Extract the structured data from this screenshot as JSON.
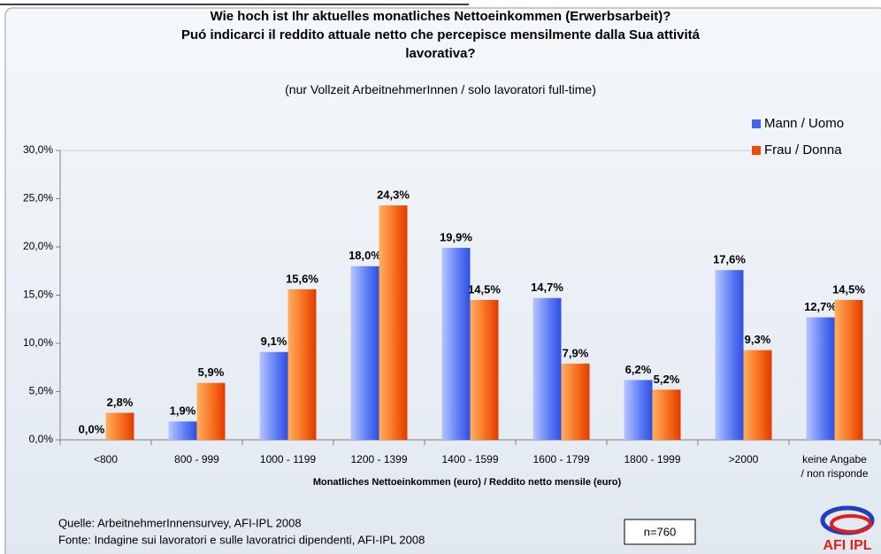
{
  "chart_data": {
    "type": "bar",
    "title": "Wie hoch ist Ihr aktuelles monatliches Nettoeinkommen (Erwerbsarbeit)?\nPuó indicarci il reddito attuale netto che percepisce mensilmente dalla Sua attivitá\nlavorativa?",
    "subtitle": "(nur Vollzeit ArbeitnehmerInnen / solo lavoratori full-time)",
    "x_label": "Monatliches Nettoeinkommen (euro) / Reddito netto mensile (euro)",
    "categories": [
      "<800",
      "800 - 999",
      "1000 - 1199",
      "1200 - 1399",
      "1400 - 1599",
      "1600 - 1799",
      "1800 - 1999",
      ">2000",
      "keine Angabe\n/ non risponde"
    ],
    "series": [
      {
        "name": "Mann / Uomo",
        "color": "#3f63ee",
        "values": [
          0.0,
          1.9,
          9.1,
          18.0,
          19.9,
          14.7,
          6.2,
          17.6,
          12.7
        ],
        "value_labels": [
          "0,0%",
          "1,9%",
          "9,1%",
          "18,0%",
          "19,9%",
          "14,7%",
          "6,2%",
          "17,6%",
          "12,7%"
        ]
      },
      {
        "name": "Frau / Donna",
        "color": "#f04a0a",
        "values": [
          2.8,
          5.9,
          15.6,
          24.3,
          14.5,
          7.9,
          5.2,
          9.3,
          14.5
        ],
        "value_labels": [
          "2,8%",
          "5,9%",
          "15,6%",
          "24,3%",
          "14,5%",
          "7,9%",
          "5,2%",
          "9,3%",
          "14,5%"
        ]
      }
    ],
    "ylim": [
      0,
      30
    ],
    "yticks": [
      {
        "value": 0,
        "label": "0,0%"
      },
      {
        "value": 5,
        "label": "5,0%"
      },
      {
        "value": 10,
        "label": "10,0%"
      },
      {
        "value": 15,
        "label": "15,0%"
      },
      {
        "value": 20,
        "label": "20,0%"
      },
      {
        "value": 25,
        "label": "25,0%"
      },
      {
        "value": 30,
        "label": "30,0%"
      }
    ],
    "legend": "top-right",
    "notes": [
      "Quelle: ArbeitnehmerInnensurvey, AFI-IPL 2008",
      "Fonte: Indagine sui lavoratori e sulle lavoratrici dipendenti, AFI-IPL 2008"
    ],
    "sample": "n=760",
    "logo": "AFI IPL"
  }
}
